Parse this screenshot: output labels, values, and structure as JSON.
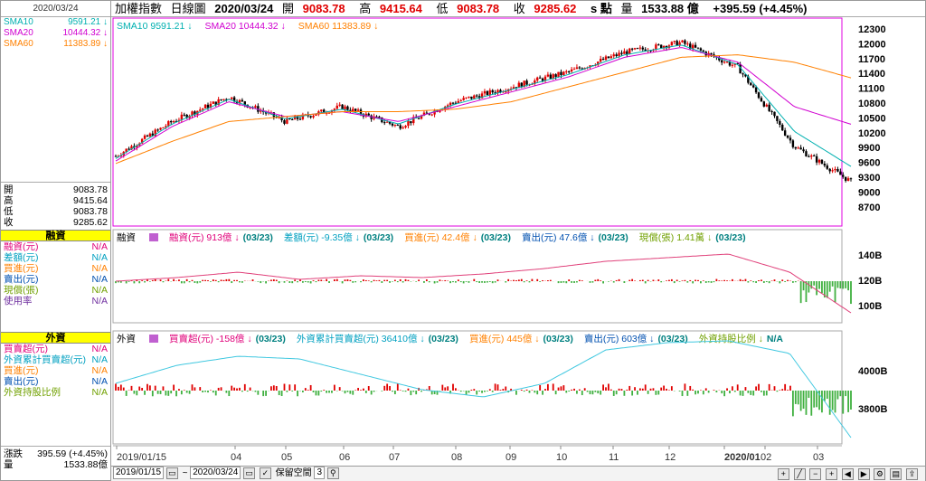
{
  "left": {
    "date": "2020/03/24",
    "sma": [
      {
        "label": "SMA10",
        "value": "9591.21",
        "color": "#00b0b0"
      },
      {
        "label": "SMA20",
        "value": "10444.32",
        "color": "#d000d0"
      },
      {
        "label": "SMA60",
        "value": "11383.89",
        "color": "#ff8000"
      }
    ],
    "ohlc": [
      {
        "label": "開",
        "value": "9083.78"
      },
      {
        "label": "高",
        "value": "9415.64"
      },
      {
        "label": "低",
        "value": "9083.78"
      },
      {
        "label": "收",
        "value": "9285.62"
      }
    ],
    "margin_title": "融資",
    "margin_rows": [
      {
        "label": "融資(元)",
        "value": "N/A",
        "color": "#e0007a"
      },
      {
        "label": "差額(元)",
        "value": "N/A",
        "color": "#00a0c0"
      },
      {
        "label": "買進(元)",
        "value": "N/A",
        "color": "#ff8000"
      },
      {
        "label": "賣出(元)",
        "value": "N/A",
        "color": "#0050b0"
      },
      {
        "label": "現償(張)",
        "value": "N/A",
        "color": "#70a000"
      },
      {
        "label": "使用率",
        "value": "N/A",
        "color": "#7030a0"
      }
    ],
    "foreign_title": "外資",
    "foreign_rows": [
      {
        "label": "買賣超(元)",
        "value": "N/A",
        "color": "#e0007a"
      },
      {
        "label": "外資累計買賣超(元)",
        "value": "N/A",
        "color": "#00a0c0"
      },
      {
        "label": "買進(元)",
        "value": "N/A",
        "color": "#ff8000"
      },
      {
        "label": "賣出(元)",
        "value": "N/A",
        "color": "#0050b0"
      },
      {
        "label": "外資持股比例",
        "value": "N/A",
        "color": "#70a000"
      }
    ],
    "bottom": [
      {
        "label": "漲跌",
        "value": "395.59 (+4.45%)"
      },
      {
        "label": "量",
        "value": "1533.88億"
      }
    ]
  },
  "header": {
    "name": "加權指數",
    "type": "日線圖",
    "date": "2020/03/24",
    "open_label": "開",
    "open": "9083.78",
    "high_label": "高",
    "high": "9415.64",
    "low_label": "低",
    "low": "9083.78",
    "close_label": "收",
    "close": "9285.62",
    "unit": "s 點",
    "vol_label": "量",
    "vol": "1533.88 億",
    "change": "+395.59 (+4.45%)"
  },
  "price_legend": [
    {
      "text": "SMA10 9591.21",
      "color": "#00b0b0"
    },
    {
      "text": "SMA20 10444.32",
      "color": "#d000d0"
    },
    {
      "text": "SMA60 11383.89",
      "color": "#ff8000"
    }
  ],
  "margin_legend_title": "融資",
  "margin_legend": [
    {
      "text": "融資(元) 913億",
      "date": "(03/23)",
      "color": "#e0007a"
    },
    {
      "text": "差額(元) -9.35億",
      "date": "(03/23)",
      "color": "#00a0c0"
    },
    {
      "text": "買進(元) 42.4億",
      "date": "(03/23)",
      "color": "#ff8000"
    },
    {
      "text": "賣出(元) 47.6億",
      "date": "(03/23)",
      "color": "#0050b0"
    },
    {
      "text": "現償(張) 1.41萬",
      "date": "(03/23)",
      "color": "#70a000"
    }
  ],
  "foreign_legend_title": "外資",
  "foreign_legend": [
    {
      "text": "買賣超(元) -158億",
      "date": "(03/23)",
      "color": "#e0007a"
    },
    {
      "text": "外資累計買賣超(元) 36410億",
      "date": "(03/23)",
      "color": "#00a0c0"
    },
    {
      "text": "買進(元) 445億",
      "date": "(03/23)",
      "color": "#ff8000"
    },
    {
      "text": "賣出(元) 603億",
      "date": "(03/23)",
      "color": "#0050b0"
    },
    {
      "text": "外資持股比例",
      "date": "N/A",
      "color": "#70a000"
    }
  ],
  "price_axis": [
    "12300",
    "12000",
    "11700",
    "11400",
    "11100",
    "10800",
    "10500",
    "10200",
    "9900",
    "9600",
    "9300",
    "9000",
    "8700"
  ],
  "margin_axis": [
    "140B",
    "120B",
    "100B"
  ],
  "foreign_axis": [
    "4000B",
    "3800B"
  ],
  "x_axis": [
    "2019/01/15",
    "04",
    "05",
    "06",
    "07",
    "08",
    "09",
    "10",
    "11",
    "12",
    "2020/01",
    "02",
    "03"
  ],
  "toolbar": {
    "start": "2019/01/15",
    "tilde": "~",
    "end": "2020/03/24",
    "keep_label": "保留空間",
    "keep_value": "3"
  },
  "chart_data": {
    "type": "candlestick",
    "note_series": [
      "price",
      "SMA10",
      "SMA20",
      "SMA60"
    ],
    "x": [
      "2019/01/15",
      "2019/04",
      "2019/05",
      "2019/06",
      "2019/07",
      "2019/08",
      "2019/09",
      "2019/10",
      "2019/11",
      "2019/12",
      "2020/01",
      "2020/02",
      "2020/03",
      "2020/03/24"
    ],
    "price_close": [
      9800,
      10500,
      11000,
      10500,
      10800,
      10400,
      10900,
      11200,
      11500,
      11900,
      12100,
      11600,
      10000,
      9285.62
    ],
    "sma10": [
      9750,
      10450,
      10950,
      10550,
      10750,
      10450,
      10850,
      11150,
      11450,
      11850,
      12050,
      11650,
      10300,
      9591.21
    ],
    "sma20": [
      9700,
      10400,
      10900,
      10600,
      10700,
      10500,
      10800,
      11100,
      11400,
      11800,
      12000,
      11700,
      10800,
      10444.32
    ],
    "sma60": [
      9650,
      10100,
      10500,
      10600,
      10700,
      10700,
      10750,
      10900,
      11200,
      11500,
      11800,
      11850,
      11700,
      11383.89
    ],
    "ylim": [
      8400,
      12500
    ]
  }
}
